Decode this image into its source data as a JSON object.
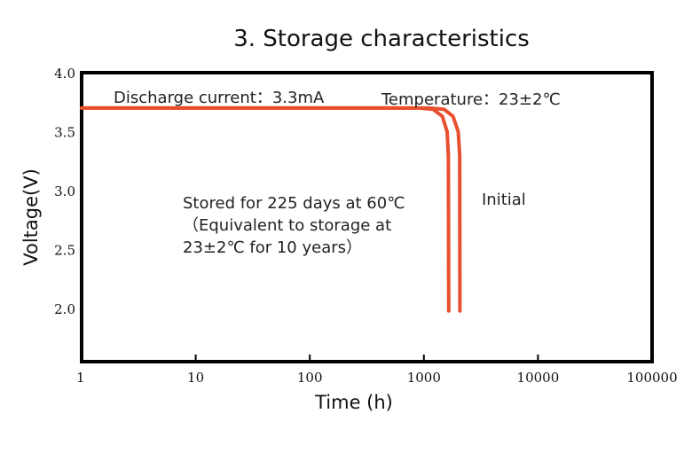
{
  "chart_data": {
    "type": "line",
    "title": "3. Storage characteristics",
    "xlabel": "Time (h)",
    "ylabel": "Voltage(V)",
    "x_scale": "log",
    "xlim": [
      1,
      100000
    ],
    "ylim": [
      1.55,
      4.0
    ],
    "x_ticks": [
      1,
      10,
      100,
      1000,
      10000,
      100000
    ],
    "x_tick_labels": [
      "1",
      "10",
      "100",
      "1000",
      "10000",
      "100000"
    ],
    "y_ticks": [
      2.0,
      2.5,
      3.0,
      3.5,
      4.0
    ],
    "y_tick_labels": [
      "2.0",
      "2.5",
      "3.0",
      "3.5",
      "4.0"
    ],
    "grid": false,
    "line_color": "#e8502e",
    "annotations": {
      "discharge": "Discharge current：3.3mA",
      "temperature": "Temperature：23±2℃",
      "stored_line1": "Stored for 225 days at 60℃",
      "stored_line2": "（Equivalent to storage at",
      "stored_line3": "23±2℃ for 10 years）",
      "initial": "Initial"
    },
    "series": [
      {
        "x": [
          1,
          900,
          1200,
          1450,
          1600,
          1640,
          1650
        ],
        "y": [
          3.7,
          3.7,
          3.69,
          3.63,
          3.5,
          3.3,
          1.98
        ]
      },
      {
        "x": [
          1,
          1100,
          1500,
          1800,
          2000,
          2060,
          2070
        ],
        "y": [
          3.7,
          3.7,
          3.69,
          3.63,
          3.5,
          3.3,
          1.98
        ]
      }
    ]
  }
}
